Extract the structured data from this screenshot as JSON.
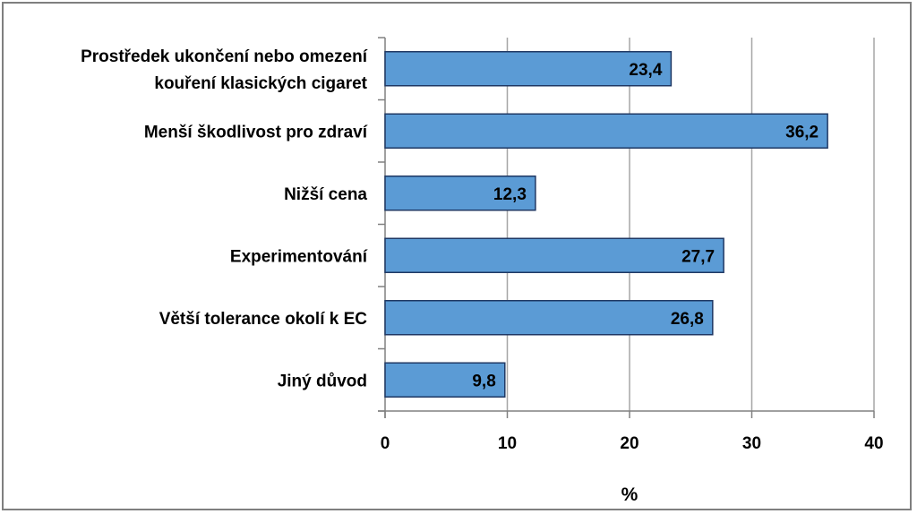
{
  "chart_data": {
    "type": "bar",
    "orientation": "horizontal",
    "categories": [
      [
        "Prostředek ukončení nebo omezení",
        "kouření klasických cigaret"
      ],
      [
        "Menší škodlivost pro zdraví"
      ],
      [
        "Nižší cena"
      ],
      [
        "Experimentování"
      ],
      [
        "Větší tolerance okolí k EC"
      ],
      [
        "Jiný důvod"
      ]
    ],
    "values": [
      23.4,
      36.2,
      12.3,
      27.7,
      26.8,
      9.8
    ],
    "data_labels": [
      "23,4",
      "36,2",
      "12,3",
      "27,7",
      "26,8",
      "9,8"
    ],
    "xlim": [
      0,
      40
    ],
    "xticks": [
      0,
      10,
      20,
      30,
      40
    ],
    "xlabel": "%",
    "ylabel": "",
    "title": "",
    "grid": "vertical",
    "legend": "none",
    "colors": {
      "bar_fill": "#5b9bd5",
      "bar_stroke": "#1f3864",
      "grid": "#a6a6a6",
      "axis": "#808080"
    }
  }
}
